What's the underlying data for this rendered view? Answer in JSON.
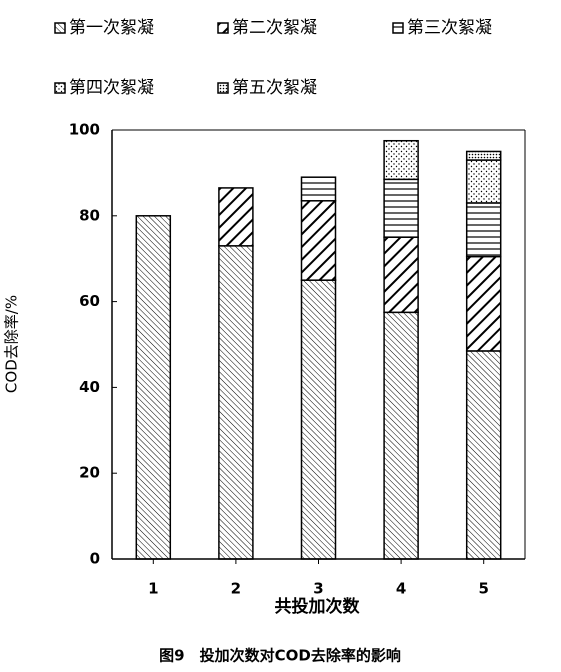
{
  "chart_data": {
    "type": "stacked_bar",
    "x_label": "共投加次数",
    "y_label": "COD去除率/%",
    "caption": "图9　投加次数对COD去除率的影响",
    "categories": [
      "1",
      "2",
      "3",
      "4",
      "5"
    ],
    "series": [
      {
        "name": "第一次絮凝",
        "color": "#000000",
        "values": [
          80,
          73,
          65,
          57.5,
          48.5
        ]
      },
      {
        "name": "第二次絮凝",
        "color": "#000000",
        "values": [
          null,
          13.5,
          18.5,
          17.5,
          22
        ]
      },
      {
        "name": "第三次絮凝",
        "color": "#000000",
        "values": [
          null,
          null,
          5.5,
          13.5,
          12.5
        ]
      },
      {
        "name": "第四次絮凝",
        "color": "#000000",
        "values": [
          null,
          null,
          null,
          9,
          10
        ]
      },
      {
        "name": "第五次絮凝",
        "color": "#000000",
        "values": [
          null,
          null,
          null,
          null,
          2
        ]
      }
    ],
    "ylim": [
      0,
      100
    ],
    "yticks": [
      0,
      20,
      40,
      60,
      80,
      100
    ]
  }
}
